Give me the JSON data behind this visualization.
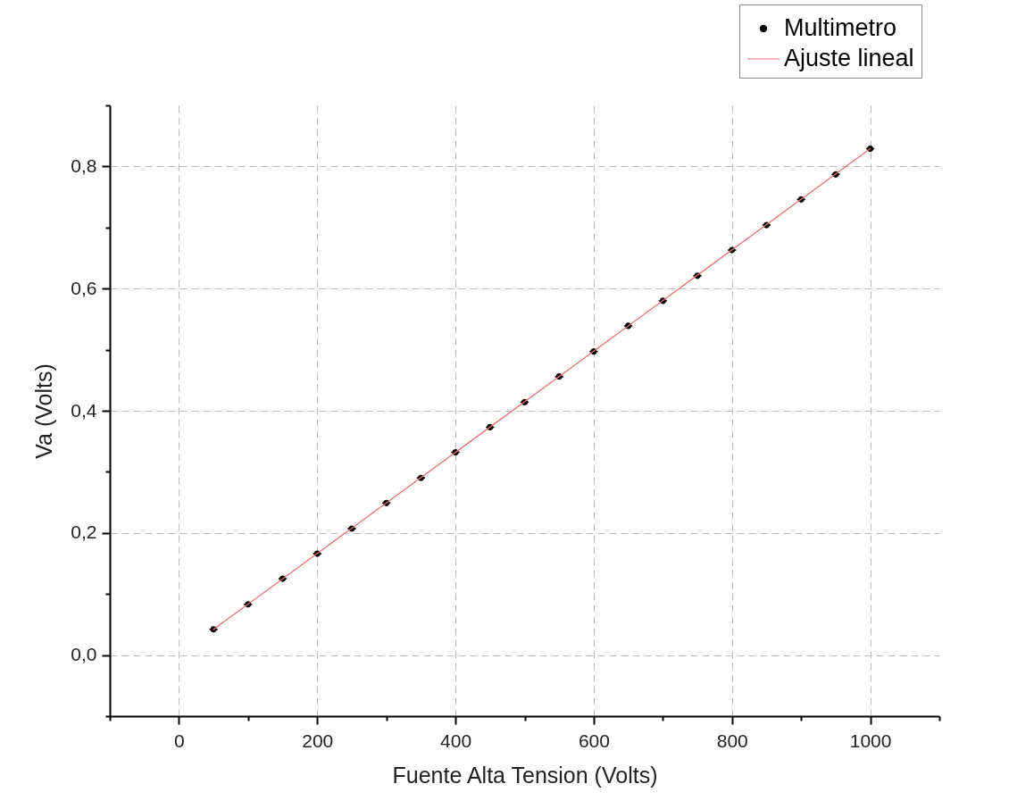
{
  "chart_data": {
    "type": "scatter",
    "xlabel": "Fuente Alta Tension (Volts)",
    "ylabel": "Va (Volts)",
    "xlim": [
      -100,
      1100
    ],
    "ylim": [
      -0.1,
      0.9
    ],
    "xticks": [
      {
        "value": -100,
        "label": null
      },
      0,
      {
        "value": 100,
        "label": null
      },
      200,
      {
        "value": 300,
        "label": null
      },
      400,
      {
        "value": 500,
        "label": null
      },
      600,
      {
        "value": 700,
        "label": null
      },
      800,
      {
        "value": 900,
        "label": null
      },
      1000,
      {
        "value": 1100,
        "label": null
      }
    ],
    "yticks": [
      {
        "value": -0.1,
        "label": null
      },
      {
        "value": 0,
        "label": "0,0"
      },
      {
        "value": 0.1,
        "label": null
      },
      {
        "value": 0.2,
        "label": "0,2"
      },
      {
        "value": 0.3,
        "label": null
      },
      {
        "value": 0.4,
        "label": "0,4"
      },
      {
        "value": 0.5,
        "label": null
      },
      {
        "value": 0.6,
        "label": "0,6"
      },
      {
        "value": 0.7,
        "label": null
      },
      {
        "value": 0.8,
        "label": "0,8"
      },
      {
        "value": 0.9,
        "label": null
      }
    ],
    "grid": true,
    "legend": "top right",
    "series": [
      {
        "name": "Multimetro",
        "color": "#000000",
        "type": "scatter",
        "marker": "circle",
        "x": [
          50,
          100,
          150,
          200,
          250,
          300,
          350,
          400,
          450,
          500,
          550,
          600,
          650,
          700,
          750,
          800,
          850,
          900,
          950,
          1000
        ],
        "values": [
          0.042,
          0.083,
          0.125,
          0.166,
          0.207,
          0.249,
          0.29,
          0.332,
          0.373,
          0.414,
          0.456,
          0.497,
          0.539,
          0.58,
          0.621,
          0.663,
          0.704,
          0.746,
          0.787,
          0.829
        ],
        "xerrors": [
          6,
          6,
          6,
          6,
          6,
          6,
          6,
          6,
          6,
          6,
          6,
          6,
          6,
          6,
          6,
          6,
          6,
          6,
          6,
          6
        ]
      },
      {
        "name": "Ajuste lineal",
        "color": "#e8706f",
        "type": "line",
        "line_style": "solid",
        "x": [
          50,
          1000
        ],
        "values": [
          0.042,
          0.829
        ]
      }
    ]
  }
}
